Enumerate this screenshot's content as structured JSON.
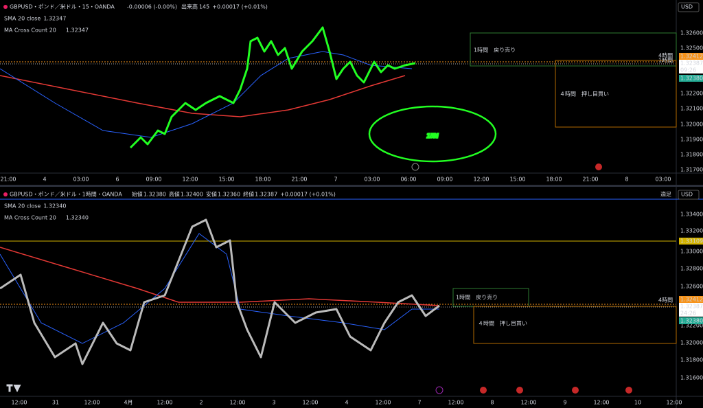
{
  "top": {
    "symbol": "GBPUSD・ポンド／米ドル・15・OANDA",
    "change": "-0.00006 (-0.00%)",
    "volume_label": "出来高",
    "volume": "145",
    "volume_change": "+0.00017 (+0.01%)",
    "sma": {
      "label": "SMA 20 close",
      "value": "1.32347"
    },
    "ma_cross": {
      "label": "MA Cross Count 20",
      "value": "1.32347"
    },
    "currency": "USD",
    "price_axis": [
      "1.32600",
      "1.32500",
      "1.32200",
      "1.32100",
      "1.32000",
      "1.31900",
      "1.31800",
      "1.31700"
    ],
    "price_marks": {
      "orange": "1.32412",
      "current": "1.32387",
      "countdown": "09:26",
      "green": "1.32380"
    },
    "line_labels": [
      "4時間",
      "1時間"
    ],
    "zones": [
      "1時間　戻り売り",
      "４時間　押し目買い"
    ],
    "time_axis": [
      "21:00",
      "4",
      "03:00",
      "6",
      "09:00",
      "12:00",
      "15:00",
      "18:00",
      "21:00",
      "7",
      "03:00",
      "06:00",
      "09:00",
      "12:00",
      "15:00",
      "18:00",
      "21:00",
      "8",
      "03:00"
    ],
    "annotation": "15M"
  },
  "bottom": {
    "symbol": "GBPUSD・ポンド／米ドル・1時間・OANDA",
    "ohlc": [
      {
        "label": "始値",
        "value": "1.32380"
      },
      {
        "label": "高値",
        "value": "1.32400"
      },
      {
        "label": "安値",
        "value": "1.32360"
      },
      {
        "label": "終値",
        "value": "1.32387"
      }
    ],
    "change": "+0.00017 (+0.01%)",
    "sma": {
      "label": "SMA 20 close",
      "value": "1.32340"
    },
    "ma_cross": {
      "label": "MA Cross Count 20",
      "value": "1.32340"
    },
    "mode": "適足",
    "currency": "USD",
    "price_axis": [
      "1.33400",
      "1.33200",
      "1.33000",
      "1.32800",
      "1.32600",
      "1.32200",
      "1.32000",
      "1.31800",
      "1.31600"
    ],
    "price_marks": {
      "yellow": "1.33109",
      "orange": "1.32412",
      "current": "1.32387",
      "countdown": "24:26",
      "green": "1.32380"
    },
    "line_labels": [
      "4時間"
    ],
    "zones": [
      "1時間　戻り売り",
      "４時間　押し目買い"
    ],
    "time_axis": [
      "12:00",
      "31",
      "12:00",
      "4月",
      "12:00",
      "2",
      "12:00",
      "3",
      "12:00",
      "4",
      "12:00",
      "7",
      "12:00",
      "8",
      "12:00",
      "9",
      "12:00",
      "10",
      "12:00"
    ]
  }
}
